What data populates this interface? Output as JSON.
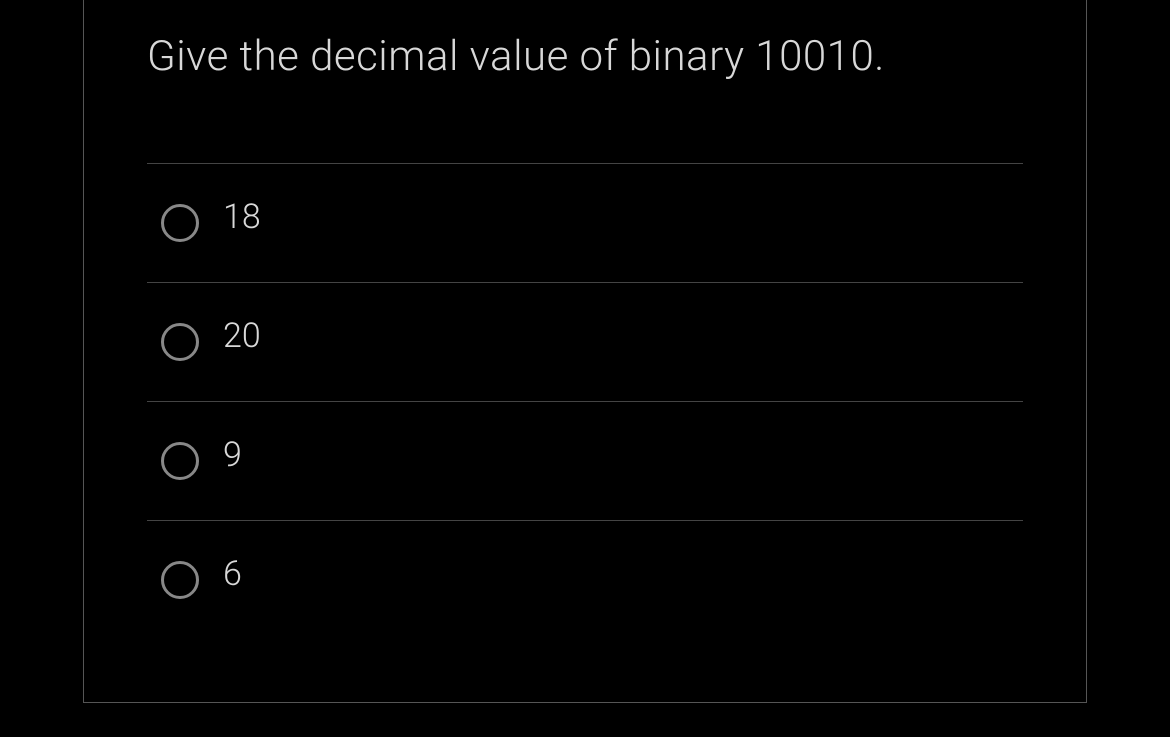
{
  "question": {
    "text": "Give the decimal value of binary 10010."
  },
  "options": [
    {
      "label": "18"
    },
    {
      "label": "20"
    },
    {
      "label": "9"
    },
    {
      "label": "6"
    }
  ],
  "colors": {
    "background": "#000000",
    "text": "#d8d8d8",
    "border": "#555555",
    "divider": "#444444",
    "radio_border": "#888888"
  }
}
